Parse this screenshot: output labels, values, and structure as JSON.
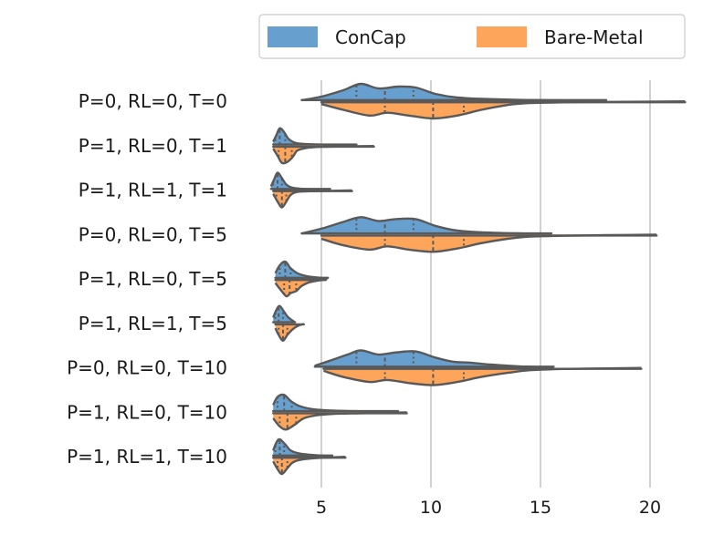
{
  "chart_data": {
    "type": "violin",
    "orientation": "horizontal",
    "split": true,
    "title": "",
    "xlabel": "",
    "ylabel": "",
    "xlim": [
      3.3,
      21.6
    ],
    "xticks": [
      5,
      10,
      15,
      20
    ],
    "grid": "x",
    "legend": {
      "placement": "top-right"
    },
    "series": [
      {
        "name": "ConCap",
        "color": "#67a0ce"
      },
      {
        "name": "Bare-Metal",
        "color": "#fda55b"
      }
    ],
    "categories": [
      "P=0, RL=0, T=0",
      "P=1, RL=0, T=1",
      "P=1, RL=1, T=1",
      "P=0, RL=0, T=5",
      "P=1, RL=0, T=5",
      "P=1, RL=1, T=5",
      "P=0, RL=0, T=10",
      "P=1, RL=0, T=10",
      "P=1, RL=1, T=10"
    ],
    "groups": [
      {
        "label": "P=0, RL=0, T=0",
        "ConCap": {
          "min": 4.1,
          "max": 18.0,
          "quartiles": [
            6.6,
            7.9,
            9.2
          ],
          "density": [
            [
              4.1,
              0.05
            ],
            [
              5.0,
              0.25
            ],
            [
              6.0,
              0.6
            ],
            [
              6.8,
              0.95
            ],
            [
              7.6,
              0.7
            ],
            [
              8.5,
              0.8
            ],
            [
              9.3,
              0.75
            ],
            [
              10.2,
              0.4
            ],
            [
              11.2,
              0.2
            ],
            [
              12.5,
              0.12
            ],
            [
              14.0,
              0.07
            ],
            [
              16.0,
              0.04
            ],
            [
              18.0,
              0.02
            ]
          ]
        },
        "Bare-Metal": {
          "min": 5.0,
          "max": 21.6,
          "quartiles": [
            7.9,
            10.1,
            11.5
          ],
          "density": [
            [
              5.0,
              0.15
            ],
            [
              6.0,
              0.45
            ],
            [
              7.2,
              0.75
            ],
            [
              8.0,
              0.6
            ],
            [
              9.0,
              0.75
            ],
            [
              10.1,
              0.9
            ],
            [
              11.2,
              0.75
            ],
            [
              12.3,
              0.45
            ],
            [
              13.5,
              0.2
            ],
            [
              14.5,
              0.1
            ],
            [
              16.0,
              0.06
            ],
            [
              18.0,
              0.04
            ],
            [
              21.6,
              0.01
            ]
          ]
        }
      },
      {
        "label": "P=1, RL=0, T=1",
        "ConCap": {
          "min": 2.8,
          "max": 6.6,
          "quartiles": [
            2.9,
            3.1,
            3.35
          ],
          "density": [
            [
              2.8,
              0.2
            ],
            [
              2.95,
              0.55
            ],
            [
              3.1,
              0.9
            ],
            [
              3.3,
              0.7
            ],
            [
              3.5,
              0.35
            ],
            [
              3.8,
              0.15
            ],
            [
              4.3,
              0.08
            ],
            [
              5.0,
              0.05
            ],
            [
              6.6,
              0.02
            ]
          ]
        },
        "Bare-Metal": {
          "min": 2.8,
          "max": 7.4,
          "quartiles": [
            3.05,
            3.35,
            3.65
          ],
          "density": [
            [
              2.8,
              0.15
            ],
            [
              3.0,
              0.5
            ],
            [
              3.2,
              0.85
            ],
            [
              3.45,
              0.8
            ],
            [
              3.7,
              0.55
            ],
            [
              3.9,
              0.25
            ],
            [
              4.3,
              0.12
            ],
            [
              5.0,
              0.06
            ],
            [
              6.0,
              0.04
            ],
            [
              7.4,
              0.02
            ]
          ]
        }
      },
      {
        "label": "P=1, RL=1, T=1",
        "ConCap": {
          "min": 2.7,
          "max": 5.4,
          "quartiles": [
            2.8,
            3.0,
            3.2
          ],
          "density": [
            [
              2.7,
              0.2
            ],
            [
              2.85,
              0.6
            ],
            [
              3.0,
              0.95
            ],
            [
              3.2,
              0.65
            ],
            [
              3.4,
              0.3
            ],
            [
              3.7,
              0.12
            ],
            [
              4.2,
              0.06
            ],
            [
              5.4,
              0.02
            ]
          ]
        },
        "Bare-Metal": {
          "min": 2.8,
          "max": 6.4,
          "quartiles": [
            2.95,
            3.2,
            3.4
          ],
          "density": [
            [
              2.8,
              0.2
            ],
            [
              3.0,
              0.6
            ],
            [
              3.2,
              0.9
            ],
            [
              3.4,
              0.6
            ],
            [
              3.6,
              0.25
            ],
            [
              3.9,
              0.1
            ],
            [
              4.5,
              0.06
            ],
            [
              5.5,
              0.04
            ],
            [
              6.4,
              0.02
            ]
          ]
        }
      },
      {
        "label": "P=0, RL=0, T=5",
        "ConCap": {
          "min": 4.1,
          "max": 15.5,
          "quartiles": [
            6.6,
            7.9,
            9.2
          ],
          "density": [
            [
              4.1,
              0.05
            ],
            [
              5.0,
              0.3
            ],
            [
              6.0,
              0.65
            ],
            [
              6.8,
              0.9
            ],
            [
              7.6,
              0.7
            ],
            [
              8.4,
              0.8
            ],
            [
              9.3,
              0.8
            ],
            [
              10.2,
              0.45
            ],
            [
              11.2,
              0.2
            ],
            [
              12.5,
              0.1
            ],
            [
              13.8,
              0.06
            ],
            [
              15.5,
              0.02
            ]
          ]
        },
        "Bare-Metal": {
          "min": 5.0,
          "max": 20.3,
          "quartiles": [
            7.9,
            10.1,
            11.5
          ],
          "density": [
            [
              5.0,
              0.2
            ],
            [
              6.0,
              0.5
            ],
            [
              7.2,
              0.7
            ],
            [
              8.0,
              0.55
            ],
            [
              9.0,
              0.7
            ],
            [
              10.1,
              0.8
            ],
            [
              11.2,
              0.65
            ],
            [
              12.3,
              0.4
            ],
            [
              13.5,
              0.2
            ],
            [
              14.5,
              0.1
            ],
            [
              16.0,
              0.06
            ],
            [
              18.0,
              0.03
            ],
            [
              20.3,
              0.01
            ]
          ]
        }
      },
      {
        "label": "P=1, RL=0, T=5",
        "ConCap": {
          "min": 2.9,
          "max": 5.3,
          "quartiles": [
            3.1,
            3.35,
            3.6
          ],
          "density": [
            [
              2.9,
              0.3
            ],
            [
              3.1,
              0.7
            ],
            [
              3.35,
              0.9
            ],
            [
              3.6,
              0.55
            ],
            [
              3.9,
              0.3
            ],
            [
              4.3,
              0.15
            ],
            [
              4.8,
              0.07
            ],
            [
              5.3,
              0.02
            ]
          ]
        },
        "Bare-Metal": {
          "min": 2.9,
          "max": 5.2,
          "quartiles": [
            3.3,
            3.55,
            3.85
          ],
          "density": [
            [
              2.9,
              0.2
            ],
            [
              3.15,
              0.55
            ],
            [
              3.4,
              0.85
            ],
            [
              3.6,
              0.7
            ],
            [
              3.85,
              0.6
            ],
            [
              4.1,
              0.35
            ],
            [
              4.5,
              0.15
            ],
            [
              5.2,
              0.03
            ]
          ]
        }
      },
      {
        "label": "P=1, RL=1, T=5",
        "ConCap": {
          "min": 2.8,
          "max": 3.8,
          "quartiles": [
            2.9,
            3.05,
            3.25
          ],
          "density": [
            [
              2.8,
              0.3
            ],
            [
              2.95,
              0.7
            ],
            [
              3.1,
              0.9
            ],
            [
              3.3,
              0.6
            ],
            [
              3.5,
              0.3
            ],
            [
              3.8,
              0.05
            ]
          ]
        },
        "Bare-Metal": {
          "min": 2.9,
          "max": 4.2,
          "quartiles": [
            3.05,
            3.25,
            3.45
          ],
          "density": [
            [
              2.9,
              0.25
            ],
            [
              3.05,
              0.6
            ],
            [
              3.25,
              0.9
            ],
            [
              3.45,
              0.6
            ],
            [
              3.7,
              0.3
            ],
            [
              3.95,
              0.12
            ],
            [
              4.2,
              0.03
            ]
          ]
        }
      },
      {
        "label": "P=0, RL=0, T=10",
        "ConCap": {
          "min": 4.7,
          "max": 15.6,
          "quartiles": [
            6.6,
            7.9,
            9.2
          ],
          "density": [
            [
              4.7,
              0.1
            ],
            [
              5.4,
              0.35
            ],
            [
              6.2,
              0.65
            ],
            [
              6.8,
              0.85
            ],
            [
              7.6,
              0.65
            ],
            [
              8.4,
              0.75
            ],
            [
              9.3,
              0.8
            ],
            [
              10.2,
              0.5
            ],
            [
              11.0,
              0.3
            ],
            [
              11.8,
              0.25
            ],
            [
              12.8,
              0.15
            ],
            [
              14.0,
              0.07
            ],
            [
              15.6,
              0.02
            ]
          ]
        },
        "Bare-Metal": {
          "min": 5.1,
          "max": 19.6,
          "quartiles": [
            7.9,
            10.1,
            11.5
          ],
          "density": [
            [
              5.1,
              0.15
            ],
            [
              6.0,
              0.45
            ],
            [
              7.2,
              0.7
            ],
            [
              8.0,
              0.6
            ],
            [
              9.0,
              0.75
            ],
            [
              10.1,
              0.85
            ],
            [
              11.2,
              0.7
            ],
            [
              12.3,
              0.45
            ],
            [
              13.5,
              0.25
            ],
            [
              14.5,
              0.12
            ],
            [
              16.0,
              0.06
            ],
            [
              18.0,
              0.03
            ],
            [
              19.6,
              0.01
            ]
          ]
        }
      },
      {
        "label": "P=1, RL=0, T=10",
        "ConCap": {
          "min": 2.8,
          "max": 8.5,
          "quartiles": [
            3.0,
            3.3,
            3.65
          ],
          "density": [
            [
              2.8,
              0.35
            ],
            [
              3.0,
              0.75
            ],
            [
              3.3,
              0.85
            ],
            [
              3.6,
              0.55
            ],
            [
              4.0,
              0.3
            ],
            [
              4.6,
              0.15
            ],
            [
              5.5,
              0.08
            ],
            [
              6.5,
              0.05
            ],
            [
              7.5,
              0.03
            ],
            [
              8.5,
              0.01
            ]
          ]
        },
        "Bare-Metal": {
          "min": 2.8,
          "max": 8.9,
          "quartiles": [
            3.1,
            3.45,
            3.85
          ],
          "density": [
            [
              2.8,
              0.3
            ],
            [
              3.1,
              0.7
            ],
            [
              3.4,
              0.85
            ],
            [
              3.8,
              0.6
            ],
            [
              4.2,
              0.3
            ],
            [
              4.8,
              0.15
            ],
            [
              5.6,
              0.08
            ],
            [
              6.8,
              0.05
            ],
            [
              8.0,
              0.03
            ],
            [
              8.9,
              0.01
            ]
          ]
        }
      },
      {
        "label": "P=1, RL=1, T=10",
        "ConCap": {
          "min": 2.8,
          "max": 5.5,
          "quartiles": [
            2.9,
            3.1,
            3.3
          ],
          "density": [
            [
              2.8,
              0.3
            ],
            [
              2.95,
              0.7
            ],
            [
              3.1,
              0.85
            ],
            [
              3.35,
              0.6
            ],
            [
              3.6,
              0.3
            ],
            [
              4.0,
              0.15
            ],
            [
              4.6,
              0.08
            ],
            [
              5.5,
              0.02
            ]
          ]
        },
        "Bare-Metal": {
          "min": 2.8,
          "max": 6.1,
          "quartiles": [
            3.0,
            3.2,
            3.45
          ],
          "density": [
            [
              2.8,
              0.25
            ],
            [
              3.0,
              0.65
            ],
            [
              3.2,
              0.9
            ],
            [
              3.45,
              0.6
            ],
            [
              3.7,
              0.3
            ],
            [
              4.1,
              0.15
            ],
            [
              4.8,
              0.07
            ],
            [
              5.5,
              0.04
            ],
            [
              6.1,
              0.01
            ]
          ]
        }
      }
    ]
  }
}
